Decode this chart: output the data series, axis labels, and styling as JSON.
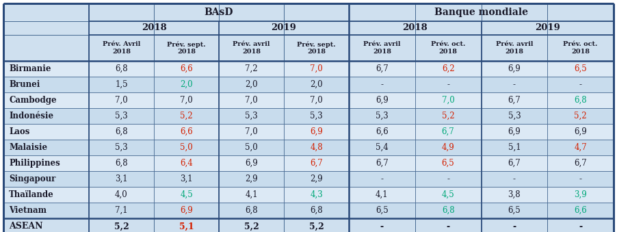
{
  "sub_headers": [
    "Prév. Avril\n2018",
    "Prév. sept.\n2018",
    "Prév. avril\n2018",
    "Prév. sept.\n2018",
    "Prév. avril\n2018",
    "Prév. oct.\n2018",
    "Prév. avril\n2018",
    "Prév. oct.\n2018"
  ],
  "row_labels": [
    "Birmanie",
    "Brunei",
    "Cambodge",
    "Indonésie",
    "Laos",
    "Malaisie",
    "Philippines",
    "Singapour",
    "Thaïlande",
    "Vietnam",
    "ASEAN"
  ],
  "row_bold": [
    false,
    false,
    false,
    false,
    false,
    false,
    false,
    false,
    false,
    false,
    true
  ],
  "data": [
    [
      "6,8",
      "6,6",
      "7,2",
      "7,0",
      "6,7",
      "6,2",
      "6,9",
      "6,5"
    ],
    [
      "1,5",
      "2,0",
      "2,0",
      "2,0",
      "-",
      "-",
      "-",
      "-"
    ],
    [
      "7,0",
      "7,0",
      "7,0",
      "7,0",
      "6,9",
      "7,0",
      "6,7",
      "6,8"
    ],
    [
      "5,3",
      "5,2",
      "5,3",
      "5,3",
      "5,3",
      "5,2",
      "5,3",
      "5,2"
    ],
    [
      "6,8",
      "6,6",
      "7,0",
      "6,9",
      "6,6",
      "6,7",
      "6,9",
      "6,9"
    ],
    [
      "5,3",
      "5,0",
      "5,0",
      "4,8",
      "5,4",
      "4,9",
      "5,1",
      "4,7"
    ],
    [
      "6,8",
      "6,4",
      "6,9",
      "6,7",
      "6,7",
      "6,5",
      "6,7",
      "6,7"
    ],
    [
      "3,1",
      "3,1",
      "2,9",
      "2,9",
      "-",
      "-",
      "-",
      "-"
    ],
    [
      "4,0",
      "4,5",
      "4,1",
      "4,3",
      "4,1",
      "4,5",
      "3,8",
      "3,9"
    ],
    [
      "7,1",
      "6,9",
      "6,8",
      "6,8",
      "6,5",
      "6,8",
      "6,5",
      "6,6"
    ],
    [
      "5,2",
      "5,1",
      "5,2",
      "5,2",
      "-",
      "-",
      "-",
      "-"
    ]
  ],
  "cell_colors": [
    [
      "black",
      "red",
      "black",
      "red",
      "black",
      "red",
      "black",
      "red"
    ],
    [
      "black",
      "green",
      "black",
      "black",
      "black",
      "black",
      "black",
      "black"
    ],
    [
      "black",
      "black",
      "black",
      "black",
      "black",
      "green",
      "black",
      "green"
    ],
    [
      "black",
      "red",
      "black",
      "black",
      "black",
      "red",
      "black",
      "red"
    ],
    [
      "black",
      "red",
      "black",
      "red",
      "black",
      "green",
      "black",
      "black"
    ],
    [
      "black",
      "red",
      "black",
      "red",
      "black",
      "red",
      "black",
      "red"
    ],
    [
      "black",
      "red",
      "black",
      "red",
      "black",
      "red",
      "black",
      "black"
    ],
    [
      "black",
      "black",
      "black",
      "black",
      "black",
      "black",
      "black",
      "black"
    ],
    [
      "black",
      "green",
      "black",
      "green",
      "black",
      "green",
      "black",
      "green"
    ],
    [
      "black",
      "red",
      "black",
      "black",
      "black",
      "green",
      "black",
      "green"
    ],
    [
      "black",
      "red",
      "black",
      "black",
      "black",
      "black",
      "black",
      "black"
    ]
  ],
  "bg_header": "#cfe0ef",
  "bg_row_light": "#dce9f5",
  "bg_row_dark": "#c8dced",
  "bg_white": "#ffffff",
  "border_color": "#3a5f8a",
  "border_thick": "#2a4a7a",
  "red": "#d42000",
  "green": "#00a878",
  "black": "#1a1a2a"
}
